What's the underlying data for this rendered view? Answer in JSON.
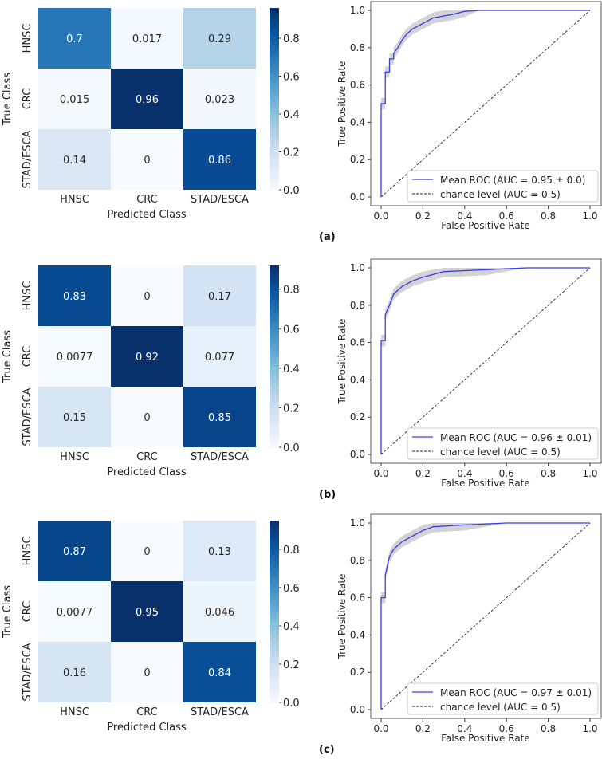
{
  "panel_labels": [
    "(a)",
    "(b)",
    "(c)"
  ],
  "chart_data": [
    {
      "panel": "(a)",
      "type": "heatmap",
      "xlabel": "Predicted Class",
      "ylabel": "True Class",
      "x_categories": [
        "HNSC",
        "CRC",
        "STAD/ESCA"
      ],
      "y_categories": [
        "HNSC",
        "CRC",
        "STAD/ESCA"
      ],
      "values": [
        [
          0.7,
          0.017,
          0.29
        ],
        [
          0.015,
          0.96,
          0.023
        ],
        [
          0.14,
          0,
          0.86
        ]
      ],
      "labels": [
        [
          "0.7",
          "0.017",
          "0.29"
        ],
        [
          "0.015",
          "0.96",
          "0.023"
        ],
        [
          "0.14",
          "0",
          "0.86"
        ]
      ],
      "colorbar": {
        "range": [
          0,
          0.96
        ],
        "ticks": [
          "0.0",
          "0.2",
          "0.4",
          "0.6",
          "0.8"
        ],
        "colormap": "Blues"
      }
    },
    {
      "panel": "(a)",
      "type": "line",
      "xlabel": "False Positive Rate",
      "ylabel": "True Positive Rate",
      "xlim": [
        0,
        1
      ],
      "ylim": [
        0,
        1
      ],
      "xticks": [
        "0.0",
        "0.2",
        "0.4",
        "0.6",
        "0.8",
        "1.0"
      ],
      "yticks": [
        "0.0",
        "0.2",
        "0.4",
        "0.6",
        "0.8",
        "1.0"
      ],
      "legend_position": "lower-right",
      "series": [
        {
          "name": "Mean ROC (AUC = 0.95 ± 0.0)",
          "color": "#3a3af0",
          "style": "solid",
          "x": [
            0,
            0,
            0.02,
            0.02,
            0.04,
            0.04,
            0.06,
            0.06,
            0.08,
            0.1,
            0.12,
            0.15,
            0.2,
            0.25,
            0.3,
            0.35,
            0.4,
            0.47,
            1
          ],
          "y": [
            0,
            0.5,
            0.5,
            0.67,
            0.67,
            0.74,
            0.74,
            0.77,
            0.8,
            0.84,
            0.87,
            0.9,
            0.93,
            0.96,
            0.97,
            0.98,
            0.995,
            1,
            1
          ],
          "band": 0.03
        },
        {
          "name": "chance level (AUC = 0.5)",
          "color": "#222222",
          "style": "dashed",
          "x": [
            0,
            1
          ],
          "y": [
            0,
            1
          ]
        }
      ]
    },
    {
      "panel": "(b)",
      "type": "heatmap",
      "xlabel": "Predicted Class",
      "ylabel": "True Class",
      "x_categories": [
        "HNSC",
        "CRC",
        "STAD/ESCA"
      ],
      "y_categories": [
        "HNSC",
        "CRC",
        "STAD/ESCA"
      ],
      "values": [
        [
          0.83,
          0,
          0.17
        ],
        [
          0.0077,
          0.92,
          0.077
        ],
        [
          0.15,
          0,
          0.85
        ]
      ],
      "labels": [
        [
          "0.83",
          "0",
          "0.17"
        ],
        [
          "0.0077",
          "0.92",
          "0.077"
        ],
        [
          "0.15",
          "0",
          "0.85"
        ]
      ],
      "colorbar": {
        "range": [
          0,
          0.92
        ],
        "ticks": [
          "0.0",
          "0.2",
          "0.4",
          "0.6",
          "0.8"
        ],
        "colormap": "Blues"
      }
    },
    {
      "panel": "(b)",
      "type": "line",
      "xlabel": "False Positive Rate",
      "ylabel": "True Positive Rate",
      "xlim": [
        0,
        1
      ],
      "ylim": [
        0,
        1
      ],
      "xticks": [
        "0.0",
        "0.2",
        "0.4",
        "0.6",
        "0.8",
        "1.0"
      ],
      "yticks": [
        "0.0",
        "0.2",
        "0.4",
        "0.6",
        "0.8",
        "1.0"
      ],
      "legend_position": "lower-right",
      "series": [
        {
          "name": "Mean ROC (AUC = 0.96 ± 0.01)",
          "color": "#3a3af0",
          "style": "solid",
          "x": [
            0,
            0,
            0.02,
            0.02,
            0.04,
            0.06,
            0.1,
            0.15,
            0.2,
            0.3,
            0.5,
            0.7,
            1
          ],
          "y": [
            0,
            0.61,
            0.61,
            0.75,
            0.8,
            0.86,
            0.9,
            0.93,
            0.95,
            0.98,
            0.99,
            1,
            1
          ],
          "band": 0.03
        },
        {
          "name": "chance level (AUC = 0.5)",
          "color": "#222222",
          "style": "dashed",
          "x": [
            0,
            1
          ],
          "y": [
            0,
            1
          ]
        }
      ]
    },
    {
      "panel": "(c)",
      "type": "heatmap",
      "xlabel": "Predicted Class",
      "ylabel": "True Class",
      "x_categories": [
        "HNSC",
        "CRC",
        "STAD/ESCA"
      ],
      "y_categories": [
        "HNSC",
        "CRC",
        "STAD/ESCA"
      ],
      "values": [
        [
          0.87,
          0,
          0.13
        ],
        [
          0.0077,
          0.95,
          0.046
        ],
        [
          0.16,
          0,
          0.84
        ]
      ],
      "labels": [
        [
          "0.87",
          "0",
          "0.13"
        ],
        [
          "0.0077",
          "0.95",
          "0.046"
        ],
        [
          "0.16",
          "0",
          "0.84"
        ]
      ],
      "colorbar": {
        "range": [
          0,
          0.95
        ],
        "ticks": [
          "0.0",
          "0.2",
          "0.4",
          "0.6",
          "0.8"
        ],
        "colormap": "Blues"
      }
    },
    {
      "panel": "(c)",
      "type": "line",
      "xlabel": "False Positive Rate",
      "ylabel": "True Positive Rate",
      "xlim": [
        0,
        1
      ],
      "ylim": [
        0,
        1
      ],
      "xticks": [
        "0.0",
        "0.2",
        "0.4",
        "0.6",
        "0.8",
        "1.0"
      ],
      "yticks": [
        "0.0",
        "0.2",
        "0.4",
        "0.6",
        "0.8",
        "1.0"
      ],
      "legend_position": "lower-right",
      "series": [
        {
          "name": "Mean ROC (AUC = 0.97 ± 0.01)",
          "color": "#3a3af0",
          "style": "solid",
          "x": [
            0,
            0,
            0.02,
            0.02,
            0.04,
            0.06,
            0.1,
            0.15,
            0.2,
            0.25,
            0.4,
            0.6,
            1
          ],
          "y": [
            0,
            0.6,
            0.6,
            0.72,
            0.82,
            0.86,
            0.9,
            0.93,
            0.96,
            0.98,
            0.99,
            1,
            1
          ],
          "band": 0.03
        },
        {
          "name": "chance level (AUC = 0.5)",
          "color": "#222222",
          "style": "dashed",
          "x": [
            0,
            1
          ],
          "y": [
            0,
            1
          ]
        }
      ]
    }
  ]
}
